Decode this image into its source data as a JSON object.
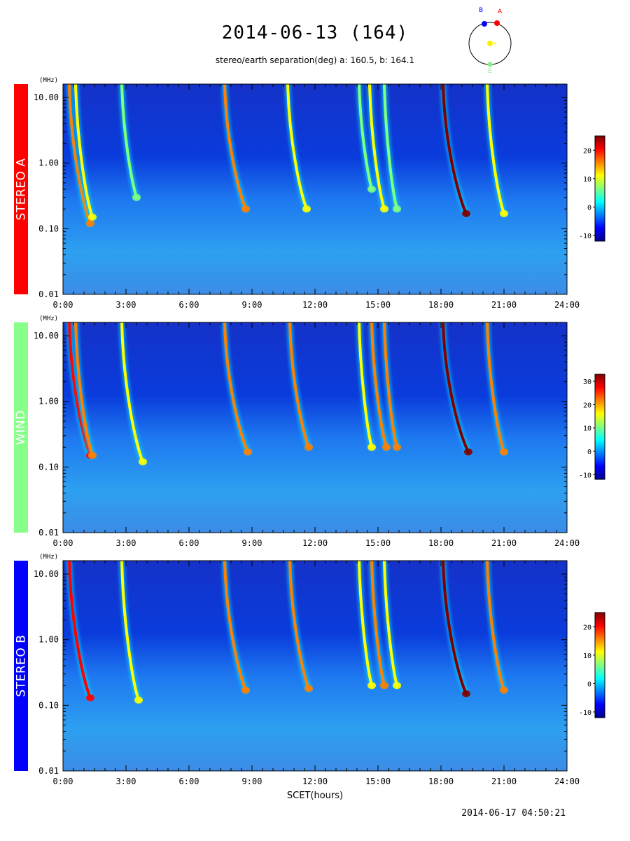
{
  "title": "2014-06-13 (164)",
  "subtitle": "stereo/earth separation(deg) a: 160.5, b: 164.1",
  "orbit_diagram": {
    "labels": {
      "stereo_a": "A",
      "stereo_b": "B",
      "sun": "S",
      "earth": "E"
    },
    "colors": {
      "stereo_a": "#ff0000",
      "stereo_b": "#0000ff",
      "sun": "#ffee00",
      "earth": "#88ee88"
    }
  },
  "timestamp": "2014-06-17 04:50:21",
  "x_axis_label": "SCET(hours)",
  "freq_unit_label": "(MHz)",
  "colormap": [
    "#00008f",
    "#0000ff",
    "#0080ff",
    "#00ffff",
    "#80ff80",
    "#ffff00",
    "#ff8000",
    "#ff0000",
    "#800000"
  ],
  "panels": [
    {
      "name": "STEREO A",
      "color": "#ff0000",
      "colorbar_ticks": [
        "20",
        "10",
        "0",
        "-10"
      ],
      "colorbar_range": [
        -12,
        25
      ]
    },
    {
      "name": "WIND",
      "color": "#88ff88",
      "colorbar_ticks": [
        "30",
        "20",
        "10",
        "0",
        "-10"
      ],
      "colorbar_range": [
        -12,
        33
      ]
    },
    {
      "name": "STEREO B",
      "color": "#0000ff",
      "colorbar_ticks": [
        "20",
        "10",
        "0",
        "-10"
      ],
      "colorbar_range": [
        -12,
        25
      ]
    }
  ],
  "chart_data": {
    "type": "heatmap",
    "title": "2014-06-13 (164)",
    "xlabel": "SCET(hours)",
    "ylabel": "(MHz)",
    "x_range_hours": [
      0,
      24
    ],
    "x_ticks": [
      "0:00",
      "3:00",
      "6:00",
      "9:00",
      "12:00",
      "15:00",
      "18:00",
      "21:00",
      "24:00"
    ],
    "y_scale": "log",
    "y_range_mhz": [
      0.01,
      16
    ],
    "y_ticks": [
      "10.00",
      "1.00",
      "0.10",
      "0.01"
    ],
    "bursts": {
      "STEREO A": [
        {
          "t": 0.3,
          "peak": 17,
          "f_end": 0.12,
          "width": 1.0
        },
        {
          "t": 0.6,
          "peak": 12,
          "f_end": 0.15,
          "width": 0.8
        },
        {
          "t": 2.8,
          "peak": 6,
          "f_end": 0.3,
          "width": 0.7
        },
        {
          "t": 7.7,
          "peak": 14,
          "f_end": 0.2,
          "width": 1.0
        },
        {
          "t": 10.7,
          "peak": 10,
          "f_end": 0.2,
          "width": 0.9
        },
        {
          "t": 14.1,
          "peak": 8,
          "f_end": 0.4,
          "width": 0.6
        },
        {
          "t": 14.6,
          "peak": 9,
          "f_end": 0.2,
          "width": 0.7
        },
        {
          "t": 15.3,
          "peak": 8,
          "f_end": 0.2,
          "width": 0.6
        },
        {
          "t": 18.1,
          "peak": 24,
          "f_end": 0.17,
          "width": 1.1
        },
        {
          "t": 20.2,
          "peak": 11,
          "f_end": 0.17,
          "width": 0.8
        }
      ],
      "WIND": [
        {
          "t": 0.3,
          "peak": 26,
          "f_end": 0.15,
          "width": 1.0
        },
        {
          "t": 0.6,
          "peak": 20,
          "f_end": 0.15,
          "width": 0.8
        },
        {
          "t": 2.8,
          "peak": 14,
          "f_end": 0.12,
          "width": 1.0
        },
        {
          "t": 7.7,
          "peak": 22,
          "f_end": 0.17,
          "width": 1.1
        },
        {
          "t": 10.8,
          "peak": 24,
          "f_end": 0.2,
          "width": 0.9
        },
        {
          "t": 14.1,
          "peak": 18,
          "f_end": 0.2,
          "width": 0.6
        },
        {
          "t": 14.7,
          "peak": 24,
          "f_end": 0.2,
          "width": 0.7
        },
        {
          "t": 15.3,
          "peak": 22,
          "f_end": 0.2,
          "width": 0.6
        },
        {
          "t": 18.1,
          "peak": 32,
          "f_end": 0.17,
          "width": 1.2
        },
        {
          "t": 20.2,
          "peak": 24,
          "f_end": 0.17,
          "width": 0.8
        }
      ],
      "STEREO B": [
        {
          "t": 0.3,
          "peak": 20,
          "f_end": 0.13,
          "width": 1.0
        },
        {
          "t": 2.8,
          "peak": 12,
          "f_end": 0.12,
          "width": 0.8
        },
        {
          "t": 7.7,
          "peak": 14,
          "f_end": 0.17,
          "width": 1.0
        },
        {
          "t": 10.8,
          "peak": 16,
          "f_end": 0.18,
          "width": 0.9
        },
        {
          "t": 14.1,
          "peak": 12,
          "f_end": 0.2,
          "width": 0.6
        },
        {
          "t": 14.7,
          "peak": 14,
          "f_end": 0.2,
          "width": 0.6
        },
        {
          "t": 15.3,
          "peak": 12,
          "f_end": 0.2,
          "width": 0.6
        },
        {
          "t": 18.1,
          "peak": 24,
          "f_end": 0.15,
          "width": 1.1
        },
        {
          "t": 20.2,
          "peak": 14,
          "f_end": 0.17,
          "width": 0.8
        }
      ]
    }
  }
}
